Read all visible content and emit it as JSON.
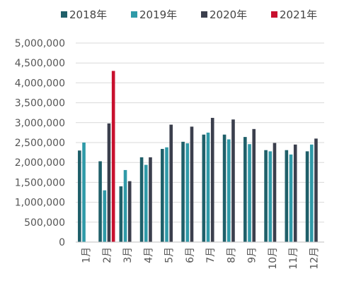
{
  "chart_data": {
    "type": "bar",
    "categories": [
      "1月",
      "2月",
      "3月",
      "4月",
      "5月",
      "6月",
      "7月",
      "8月",
      "9月",
      "10月",
      "11月",
      "12月"
    ],
    "series": [
      {
        "name": "2018年",
        "color": "#1f5f69",
        "values": [
          2300000,
          2030000,
          1400000,
          2130000,
          2340000,
          2520000,
          2700000,
          2700000,
          2640000,
          2310000,
          2310000,
          2280000
        ]
      },
      {
        "name": "2019年",
        "color": "#2f9aa8",
        "values": [
          2500000,
          1300000,
          1810000,
          1940000,
          2380000,
          2480000,
          2750000,
          2580000,
          2460000,
          2280000,
          2200000,
          2450000
        ]
      },
      {
        "name": "2020年",
        "color": "#3b3f4d",
        "values": [
          null,
          2980000,
          1530000,
          2130000,
          2950000,
          2900000,
          3120000,
          3080000,
          2840000,
          2490000,
          2450000,
          2600000
        ]
      },
      {
        "name": "2021年",
        "color": "#c8102e",
        "values": [
          null,
          4300000,
          null,
          null,
          null,
          null,
          null,
          null,
          null,
          null,
          null,
          null
        ]
      }
    ],
    "yticks": [
      "0",
      "500,000",
      "1,000,000",
      "1,500,000",
      "2,000,000",
      "2,500,000",
      "3,000,000",
      "3,500,000",
      "4,000,000",
      "4,500,000",
      "5,000,000"
    ],
    "ylim": [
      0,
      5000000
    ],
    "grid": true,
    "legend": "top"
  }
}
